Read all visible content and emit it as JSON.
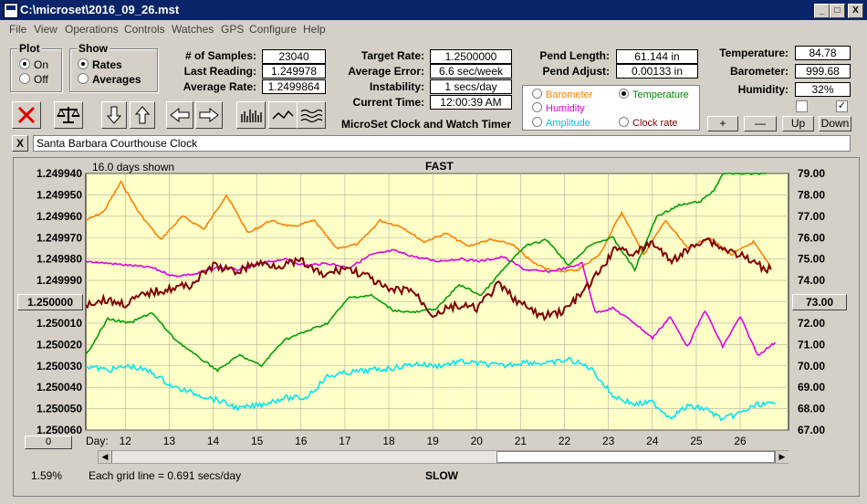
{
  "window": {
    "title": "C:\\microset\\2016_09_26.mst",
    "min_glyph": "_",
    "max_glyph": "□",
    "close_glyph": "X"
  },
  "menu": [
    "File",
    "View",
    "Operations",
    "Controls",
    "Watches",
    "GPS",
    "Configure",
    "Help"
  ],
  "plot": {
    "title": "Plot",
    "options": [
      "On",
      "Off"
    ],
    "selected": "On"
  },
  "show": {
    "title": "Show",
    "options": [
      "Rates",
      "Averages"
    ],
    "selected": "Rates"
  },
  "stats": {
    "samples_label": "# of Samples:",
    "samples": "23040",
    "last_reading_label": "Last Reading:",
    "last_reading": "1.249978",
    "average_rate_label": "Average Rate:",
    "average_rate": "1.2499864",
    "target_rate_label": "Target Rate:",
    "target_rate": "1.2500000",
    "average_error_label": "Average Error:",
    "average_error": "6.6 sec/week",
    "instability_label": "Instability:",
    "instability": "1 secs/day",
    "current_time_label": "Current Time:",
    "current_time": "12:00:39 AM",
    "pend_length_label": "Pend Length:",
    "pend_length": "61.144 in",
    "pend_adjust_label": "Pend Adjust:",
    "pend_adjust": "0.00133 in",
    "temperature_label": "Temperature:",
    "temperature": "84.78",
    "barometer_label": "Barometer:",
    "barometer": "999.68",
    "humidity_label": "Humidity:",
    "humidity": "32%"
  },
  "app_caption": "MicroSet Clock and Watch Timer",
  "series_selector": {
    "items": [
      {
        "label": "Barometer",
        "color": "#ff8000",
        "selected": false
      },
      {
        "label": "Temperature",
        "color": "#008000",
        "selected": true
      },
      {
        "label": "Humidity",
        "color": "#e000e0",
        "selected": false
      },
      {
        "label": "Clock rate",
        "color": "#800000",
        "selected": false
      },
      {
        "label": "Amplitude",
        "color": "#00c0e0",
        "selected": false
      }
    ]
  },
  "scale_buttons": {
    "plus": "+",
    "minus": "—",
    "up": "Up",
    "down": "Down"
  },
  "checkbox_right_checked": "✓",
  "clock_name": "Santa Barbara Courthouse Clock",
  "close_glyph": "X",
  "chart_header": {
    "days_shown": "16.0 days shown",
    "fast": "FAST",
    "slow": "SLOW",
    "grid_note": "Each grid line = 0.691 secs/day",
    "percent": "1.59%"
  },
  "left_button_value": "1.250000",
  "right_button_value": "73.00",
  "bottom_left_value": "0",
  "day_label": "Day:",
  "chart_data": {
    "type": "line",
    "x_label": "Day",
    "x_ticks": [
      "12",
      "13",
      "14",
      "15",
      "16",
      "17",
      "18",
      "19",
      "20",
      "21",
      "22",
      "23",
      "24",
      "25",
      "26"
    ],
    "xlim": [
      11.1,
      27.1
    ],
    "left_axis": {
      "ticks": [
        "1.249940",
        "1.249950",
        "1.249960",
        "1.249970",
        "1.249980",
        "1.249990",
        "1.250000",
        "1.250010",
        "1.250020",
        "1.250030",
        "1.250040",
        "1.250050",
        "1.250060"
      ],
      "range": [
        1.24994,
        1.25006
      ]
    },
    "right_axis": {
      "ticks": [
        "79.00",
        "78.00",
        "77.00",
        "76.00",
        "75.00",
        "74.00",
        "73.00",
        "72.00",
        "71.00",
        "70.00",
        "69.00",
        "68.00",
        "67.00"
      ],
      "range": [
        67,
        79
      ]
    },
    "series": [
      {
        "name": "Barometer",
        "color": "#ff8000",
        "x": [
          11.1,
          11.5,
          11.9,
          12.3,
          12.8,
          13.3,
          13.8,
          14.3,
          14.8,
          15.3,
          15.8,
          16.3,
          16.8,
          17.3,
          17.8,
          18.3,
          18.8,
          19.3,
          19.8,
          20.3,
          20.8,
          21.3,
          21.8,
          22.3,
          22.8,
          23.3,
          23.8,
          24.3,
          24.8,
          25.3,
          25.8,
          26.3,
          26.7
        ],
        "y": [
          1.249962,
          1.249958,
          1.249944,
          1.249958,
          1.249971,
          1.24996,
          1.249966,
          1.24995,
          1.249968,
          1.249962,
          1.249965,
          1.249962,
          1.249975,
          1.249973,
          1.249962,
          1.249965,
          1.249972,
          1.249968,
          1.249974,
          1.249971,
          1.249973,
          1.249982,
          1.249986,
          1.249985,
          1.249978,
          1.249958,
          1.249978,
          1.249962,
          1.249975,
          1.24997,
          1.249978,
          1.249972,
          1.249984
        ]
      },
      {
        "name": "Temperature",
        "color": "#00a000",
        "x": [
          11.1,
          11.6,
          12.1,
          12.6,
          13.1,
          13.6,
          14.1,
          14.6,
          15.1,
          15.6,
          16.1,
          16.6,
          17.1,
          17.6,
          18.1,
          18.6,
          19.1,
          19.6,
          20.1,
          20.6,
          21.1,
          21.6,
          22.1,
          22.6,
          23.1,
          23.6,
          24.1,
          24.6,
          25.1,
          25.4,
          25.6,
          26.0,
          26.6
        ],
        "y": [
          70.5,
          72.2,
          72.0,
          72.5,
          71.3,
          70.5,
          69.8,
          70.5,
          70.0,
          71.2,
          71.6,
          72.0,
          73.2,
          73.3,
          72.6,
          72.5,
          72.7,
          73.8,
          73.3,
          74.5,
          75.6,
          75.9,
          74.7,
          75.7,
          76.0,
          74.5,
          77.0,
          77.5,
          77.7,
          78.2,
          79.0,
          79.0,
          79.0
        ]
      },
      {
        "name": "Humidity",
        "color": "#e000e0",
        "x": [
          11.1,
          11.6,
          12.1,
          12.6,
          13.1,
          13.6,
          14.1,
          14.6,
          15.1,
          15.6,
          16.1,
          16.6,
          17.1,
          17.6,
          18.1,
          18.6,
          19.1,
          19.6,
          20.1,
          20.6,
          21.1,
          21.6,
          22.1,
          22.4,
          22.7,
          23.1,
          23.6,
          24.0,
          24.4,
          24.8,
          25.2,
          25.6,
          26.0,
          26.4,
          26.8
        ],
        "y": [
          74.9,
          74.8,
          74.7,
          74.6,
          74.2,
          74.3,
          74.6,
          74.5,
          74.8,
          75.0,
          74.7,
          74.8,
          74.6,
          75.2,
          75.4,
          75.1,
          74.9,
          75.0,
          74.9,
          75.1,
          74.5,
          74.4,
          74.6,
          74.8,
          72.5,
          72.7,
          72.0,
          71.3,
          72.3,
          70.9,
          72.6,
          70.9,
          72.3,
          70.5,
          71.1
        ]
      },
      {
        "name": "Clock rate",
        "color": "#800000",
        "x": [
          11.1,
          11.5,
          12.0,
          12.5,
          13.0,
          13.5,
          14.0,
          14.5,
          15.0,
          15.5,
          16.0,
          16.5,
          17.0,
          17.5,
          18.0,
          18.5,
          19.0,
          19.5,
          20.0,
          20.5,
          21.0,
          21.5,
          22.0,
          22.4,
          22.8,
          23.2,
          23.6,
          24.0,
          24.4,
          24.8,
          25.2,
          25.6,
          26.0,
          26.4,
          26.7
        ],
        "y": [
          1.250001,
          1.249999,
          1.250001,
          1.249996,
          1.249994,
          1.249992,
          1.249983,
          1.249986,
          1.249982,
          1.249983,
          1.249981,
          1.249988,
          1.249984,
          1.249988,
          1.249995,
          1.249994,
          1.250006,
          1.250002,
          1.250003,
          1.249992,
          1.250001,
          1.250007,
          1.250004,
          1.249996,
          1.249986,
          1.249974,
          1.249978,
          1.249972,
          1.249981,
          1.249976,
          1.24997,
          1.249975,
          1.249978,
          1.249983,
          1.249985
        ]
      },
      {
        "name": "Amplitude",
        "color": "#00e5f0",
        "x": [
          11.1,
          11.6,
          12.1,
          12.6,
          13.1,
          13.6,
          14.1,
          14.6,
          15.1,
          15.6,
          16.1,
          16.6,
          17.1,
          17.6,
          18.1,
          18.6,
          19.1,
          19.6,
          20.1,
          20.6,
          21.1,
          21.6,
          22.1,
          22.6,
          23.1,
          23.6,
          24.0,
          24.4,
          24.8,
          25.2,
          25.6,
          26.0,
          26.4,
          26.8
        ],
        "y": [
          70.0,
          69.8,
          70.0,
          69.7,
          69.0,
          68.7,
          68.4,
          68.0,
          68.2,
          68.5,
          68.5,
          69.5,
          69.7,
          69.8,
          69.9,
          70.1,
          70.0,
          70.2,
          70.1,
          70.0,
          70.2,
          70.1,
          70.3,
          69.9,
          68.6,
          68.2,
          68.3,
          67.6,
          68.1,
          68.0,
          67.5,
          67.8,
          68.2,
          68.2
        ]
      }
    ]
  }
}
